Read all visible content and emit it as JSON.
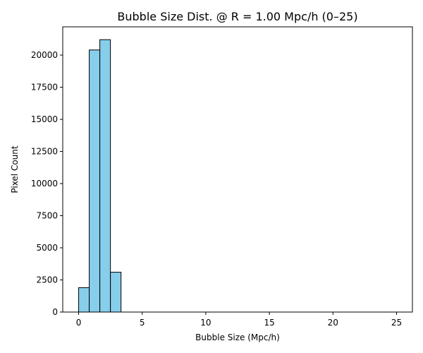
{
  "chart_data": {
    "type": "bar",
    "title": "Bubble Size Dist. @ R = 1.00 Mpc/h (0–25)",
    "xlabel": "Bubble Size (Mpc/h)",
    "ylabel": "Pixel Count",
    "xlim": [
      -1.25,
      26.25
    ],
    "ylim": [
      0,
      22200
    ],
    "grid": false,
    "bin_width": 0.8333,
    "bins": [
      {
        "start": 0.0,
        "end": 0.8333,
        "count": 1900
      },
      {
        "start": 0.8333,
        "end": 1.6667,
        "count": 20400
      },
      {
        "start": 1.6667,
        "end": 2.5,
        "count": 21200
      },
      {
        "start": 2.5,
        "end": 3.3333,
        "count": 3100
      }
    ],
    "xticks": [
      0,
      5,
      10,
      15,
      20,
      25
    ],
    "yticks": [
      0,
      2500,
      5000,
      7500,
      10000,
      12500,
      15000,
      17500,
      20000
    ],
    "bar_color": "#87ceeb",
    "edge_color": "#000000"
  }
}
